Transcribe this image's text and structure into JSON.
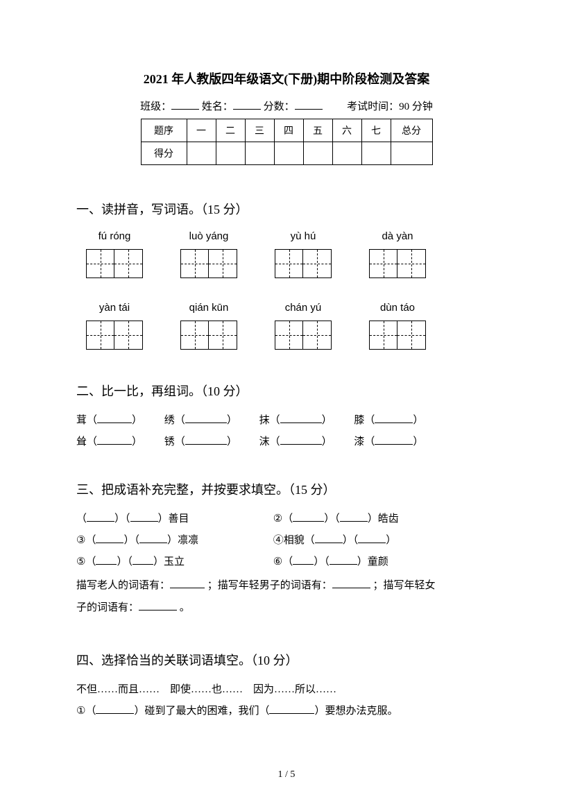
{
  "title": "2021 年人教版四年级语文(下册)期中阶段检测及答案",
  "info": {
    "class_label": "班级：",
    "name_label": "姓名：",
    "score_label": "分数：",
    "time_label": "考试时间：90 分钟"
  },
  "score_table": {
    "headers": [
      "题序",
      "一",
      "二",
      "三",
      "四",
      "五",
      "六",
      "七",
      "总分"
    ],
    "row_label": "得分"
  },
  "section1": {
    "heading": "一、读拼音，写词语。（15 分）",
    "row1": [
      {
        "pinyin": "fú  róng"
      },
      {
        "pinyin": "luò yáng"
      },
      {
        "pinyin": "yù hú"
      },
      {
        "pinyin": "dà yàn"
      }
    ],
    "row2": [
      {
        "pinyin": "yàn tái"
      },
      {
        "pinyin": "qián kūn"
      },
      {
        "pinyin": "chán yú"
      },
      {
        "pinyin": "dùn táo"
      }
    ]
  },
  "section2": {
    "heading": "二、比一比，再组词。（10 分）",
    "rows": [
      [
        {
          "char": "茸"
        },
        {
          "char": "绣"
        },
        {
          "char": "抹"
        },
        {
          "char": "膝"
        }
      ],
      [
        {
          "char": "耸"
        },
        {
          "char": "锈"
        },
        {
          "char": "沫"
        },
        {
          "char": "漆"
        }
      ]
    ]
  },
  "section3": {
    "heading": "三、把成语补充完整，并按要求填空。（15 分）",
    "items": {
      "i1_suffix": "善目",
      "i2_prefix": "②",
      "i2_suffix": "皓齿",
      "i3_prefix": "③",
      "i3_suffix": "凛凛",
      "i4_prefix": "④相貌",
      "i5_prefix": "⑤",
      "i5_suffix": "玉立",
      "i6_prefix": "⑥",
      "i6_suffix": "童颜"
    },
    "desc": {
      "old": "描写老人的词语有：",
      "young_man": "；描写年轻男子的词语有：",
      "young_woman": "；描写年轻女",
      "young_woman2": "子的词语有：",
      "end": "。"
    }
  },
  "section4": {
    "heading": "四、选择恰当的关联词语填空。（10 分）",
    "options": "不但……而且……　即使……也……　因为……所以……",
    "q1_a": "①（",
    "q1_b": "）碰到了最大的困难，我们（",
    "q1_c": "）要想办法克服。"
  },
  "page_num": "1 / 5"
}
